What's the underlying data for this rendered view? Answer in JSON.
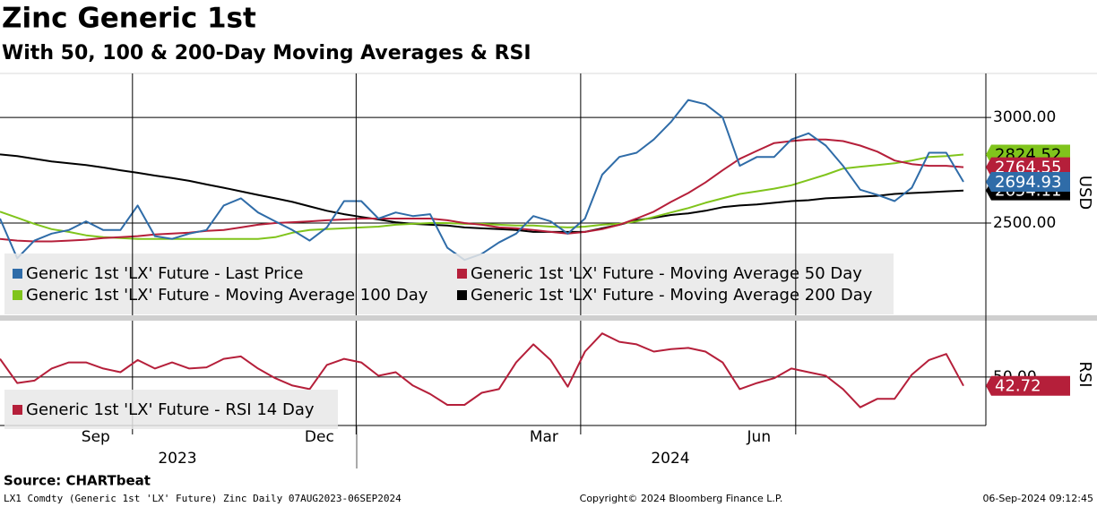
{
  "header": {
    "title": "Zinc Generic 1st",
    "subtitle": "With 50, 100 & 200-Day Moving Averages & RSI"
  },
  "chart_data": [
    {
      "type": "line",
      "y_label": "USD",
      "categories": [
        null,
        null,
        null,
        null,
        null,
        null,
        null,
        null,
        null,
        null,
        null,
        null,
        null,
        null,
        null,
        null,
        null,
        null,
        null,
        null,
        null,
        null,
        null,
        null,
        null,
        null,
        null,
        null,
        null,
        null,
        null,
        null,
        null,
        null,
        null,
        null,
        null,
        null,
        null,
        null,
        null,
        null,
        null,
        null,
        null,
        null,
        null,
        null,
        null,
        null,
        null,
        null,
        null,
        null,
        null,
        null,
        null
      ],
      "ylim": [
        2063,
        3200
      ],
      "yticks": [
        {
          "value": 2500,
          "label": "2500.00"
        },
        {
          "value": 3000,
          "label": "3000.00"
        }
      ],
      "grid": true,
      "legend": "bottom-left",
      "series": [
        {
          "name": "Generic 1st 'LX' Future - Moving Average 200 Day",
          "color": "#000000",
          "values": [
            2825,
            2817,
            2804,
            2792,
            2783,
            2775,
            2763,
            2750,
            2738,
            2725,
            2713,
            2700,
            2683,
            2667,
            2650,
            2633,
            2617,
            2600,
            2579,
            2558,
            2542,
            2529,
            2517,
            2504,
            2496,
            2492,
            2488,
            2479,
            2475,
            2471,
            2467,
            2458,
            2458,
            2458,
            2458,
            2475,
            2492,
            2513,
            2525,
            2538,
            2546,
            2558,
            2575,
            2583,
            2588,
            2596,
            2604,
            2608,
            2617,
            2621,
            2625,
            2629,
            2638,
            2642,
            2646,
            2650,
            2654.11
          ]
        },
        {
          "name": "Generic 1st 'LX' Future - Moving Average 100 Day",
          "color": "#80c41c",
          "values": [
            2554,
            2525,
            2496,
            2471,
            2458,
            2442,
            2433,
            2429,
            2425,
            2425,
            2425,
            2425,
            2425,
            2425,
            2425,
            2425,
            2433,
            2454,
            2467,
            2471,
            2475,
            2479,
            2483,
            2492,
            2496,
            2500,
            2500,
            2496,
            2496,
            2492,
            2488,
            2488,
            2483,
            2479,
            2483,
            2492,
            2496,
            2508,
            2529,
            2550,
            2571,
            2596,
            2617,
            2638,
            2650,
            2663,
            2679,
            2704,
            2729,
            2758,
            2767,
            2775,
            2783,
            2796,
            2813,
            2817,
            2824.52
          ]
        },
        {
          "name": "Generic 1st 'LX' Future - Moving Average 50 Day",
          "color": "#b51f3a",
          "values": [
            2425,
            2417,
            2413,
            2413,
            2417,
            2421,
            2429,
            2433,
            2438,
            2446,
            2450,
            2454,
            2463,
            2467,
            2479,
            2492,
            2500,
            2504,
            2508,
            2513,
            2517,
            2521,
            2521,
            2521,
            2521,
            2521,
            2513,
            2500,
            2492,
            2479,
            2475,
            2467,
            2458,
            2450,
            2458,
            2471,
            2492,
            2521,
            2554,
            2600,
            2642,
            2692,
            2750,
            2804,
            2842,
            2879,
            2888,
            2896,
            2896,
            2888,
            2867,
            2838,
            2796,
            2779,
            2771,
            2771,
            2764.55
          ]
        },
        {
          "name": "Generic 1st 'LX' Future - Last Price",
          "color": "#2f6ca8",
          "values": [
            2521,
            2333,
            2417,
            2450,
            2467,
            2508,
            2467,
            2467,
            2583,
            2438,
            2425,
            2450,
            2467,
            2583,
            2617,
            2550,
            2508,
            2467,
            2417,
            2479,
            2604,
            2604,
            2521,
            2550,
            2533,
            2542,
            2383,
            2325,
            2354,
            2408,
            2450,
            2533,
            2508,
            2450,
            2521,
            2729,
            2813,
            2833,
            2896,
            2979,
            3083,
            3063,
            3000,
            2771,
            2813,
            2813,
            2896,
            2925,
            2867,
            2771,
            2658,
            2633,
            2604,
            2667,
            2833,
            2833,
            2694.93
          ]
        }
      ]
    },
    {
      "type": "line",
      "y_label": "RSI",
      "categories": [
        null,
        null,
        null,
        null,
        null,
        null,
        null,
        null,
        null,
        null,
        null,
        null,
        null,
        null,
        null,
        null,
        null,
        null,
        null,
        null,
        null,
        null,
        null,
        null,
        null,
        null,
        null,
        null,
        null,
        null,
        null,
        null,
        null,
        null,
        null,
        null,
        null,
        null,
        null,
        null,
        null,
        null,
        null,
        null,
        null,
        null,
        null,
        null,
        null,
        null,
        null,
        null,
        null,
        null,
        null,
        null,
        null
      ],
      "ylim": [
        10,
        95
      ],
      "yticks": [
        {
          "value": 50,
          "label": "50.00"
        }
      ],
      "grid": true,
      "legend": "bottom-left",
      "xticks": [
        {
          "value": 7.7,
          "label": "Sep"
        },
        {
          "value": 20.7,
          "label": "Dec"
        },
        {
          "value": 33.75,
          "label": "Mar"
        },
        {
          "value": 46.25,
          "label": "Jun"
        }
      ],
      "x_group_labels": [
        "2023",
        "2024"
      ],
      "series": [
        {
          "name": "Generic 1st 'LX' Future - RSI 14 Day",
          "color": "#b51f3a",
          "values": [
            65,
            45,
            47,
            57,
            62,
            62,
            57,
            54,
            64,
            57,
            62,
            57,
            58,
            65,
            67,
            57,
            49,
            43,
            40,
            60,
            65,
            62,
            51,
            54,
            43,
            36,
            27,
            27,
            37,
            40,
            62,
            77,
            64,
            42,
            71,
            86,
            79,
            77,
            71,
            73,
            74,
            71,
            62,
            40,
            45,
            49,
            57,
            54,
            51,
            40,
            25,
            32,
            32,
            52,
            64,
            69,
            42.72
          ]
        }
      ]
    }
  ],
  "footer": {
    "source": "Source: CHARTbeat",
    "left": "LX1 Comdty (Generic 1st 'LX' Future) Zinc  Daily 07AUG2023-06SEP2024",
    "center": "Copyright© 2024 Bloomberg Finance L.P.",
    "right": "06-Sep-2024 09:12:45"
  }
}
